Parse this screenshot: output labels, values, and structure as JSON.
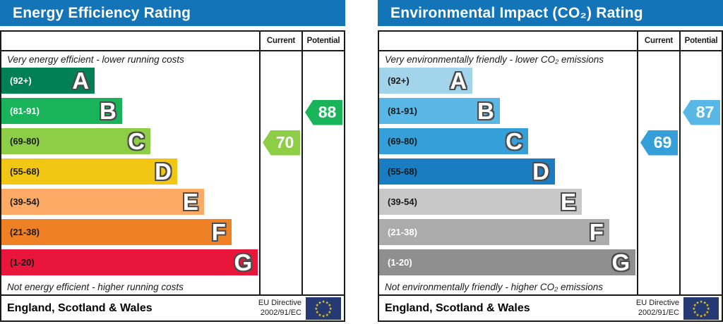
{
  "charts": [
    {
      "title": "Energy Efficiency Rating",
      "title_style": "background:#1374b8;color:#ffffff",
      "columns": {
        "current": "Current",
        "potential": "Potential"
      },
      "top_caption": "Very energy efficient - lower running costs",
      "bottom_caption": "Not energy efficient - higher running costs",
      "bands": [
        {
          "range": "(92+)",
          "letter": "A",
          "style": "width:36.2%;background:#008054;color:#ffffff"
        },
        {
          "range": "(81-91)",
          "letter": "B",
          "style": "width:46.8%;background:#19b459;color:#ffffff"
        },
        {
          "range": "(69-80)",
          "letter": "C",
          "style": "width:57.8%;background:#8dce46;color:#1a1a1a"
        },
        {
          "range": "(55-68)",
          "letter": "D",
          "style": "width:68.2%;background:#f2c713;color:#1a1a1a"
        },
        {
          "range": "(39-54)",
          "letter": "E",
          "style": "width:78.6%;background:#fcaa65;color:#1a1a1a"
        },
        {
          "range": "(21-38)",
          "letter": "F",
          "style": "width:89.3%;background:#ef8023;color:#1a1a1a"
        },
        {
          "range": "(1-20)",
          "letter": "G",
          "style": "width:99.5%;background:#e9153b;color:#1a1a1a"
        }
      ],
      "current": {
        "value": "70",
        "band": "C",
        "style": "background:#8dce46"
      },
      "potential": {
        "value": "88",
        "band": "B",
        "style": "background:#19b459"
      },
      "footer": {
        "region": "England, Scotland & Wales",
        "directive_line1": "EU Directive",
        "directive_line2": "2002/91/EC"
      },
      "eu_flag_style": "background:#253a72;color:#f7d117"
    },
    {
      "title": "Environmental Impact (CO₂) Rating",
      "title_style": "background:#1374b8;color:#ffffff",
      "columns": {
        "current": "Current",
        "potential": "Potential"
      },
      "top_caption": "Very environmentally friendly - lower CO₂ emissions",
      "bottom_caption": "Not environmentally friendly - higher CO₂ emissions",
      "bands": [
        {
          "range": "(92+)",
          "letter": "A",
          "style": "width:36.2%;background:#a2d5ec;color:#1a1a1a"
        },
        {
          "range": "(81-91)",
          "letter": "B",
          "style": "width:46.8%;background:#58b7e4;color:#1a1a1a"
        },
        {
          "range": "(69-80)",
          "letter": "C",
          "style": "width:57.8%;background:#349fd8;color:#1a1a1a"
        },
        {
          "range": "(55-68)",
          "letter": "D",
          "style": "width:68.2%;background:#1a7cc1;color:#1a1a1a"
        },
        {
          "range": "(39-54)",
          "letter": "E",
          "style": "width:78.6%;background:#c8c8c8;color:#1a1a1a"
        },
        {
          "range": "(21-38)",
          "letter": "F",
          "style": "width:89.3%;background:#ababab;color:#ffffff"
        },
        {
          "range": "(1-20)",
          "letter": "G",
          "style": "width:99.5%;background:#8f8f8f;color:#ffffff"
        }
      ],
      "current": {
        "value": "69",
        "band": "C",
        "style": "background:#349fd8"
      },
      "potential": {
        "value": "87",
        "band": "B",
        "style": "background:#58b7e4"
      },
      "footer": {
        "region": "England, Scotland & Wales",
        "directive_line1": "EU Directive",
        "directive_line2": "2002/91/EC"
      },
      "eu_flag_style": "background:#253a72;color:#f7d117"
    }
  ],
  "chart_data": [
    {
      "type": "bar",
      "title": "Energy Efficiency Rating",
      "categories": [
        "A (92+)",
        "B (81-91)",
        "C (69-80)",
        "D (55-68)",
        "E (39-54)",
        "F (21-38)",
        "G (1-20)"
      ],
      "values": [
        36.2,
        46.8,
        57.8,
        68.2,
        78.6,
        89.3,
        99.5
      ],
      "series": [
        {
          "name": "Current",
          "value": 70,
          "band": "C"
        },
        {
          "name": "Potential",
          "value": 88,
          "band": "B"
        }
      ],
      "xlabel": "",
      "ylabel": "",
      "legend_position": "right-columns",
      "annotations": [
        "Very energy efficient - lower running costs",
        "Not energy efficient - higher running costs"
      ]
    },
    {
      "type": "bar",
      "title": "Environmental Impact (CO₂) Rating",
      "categories": [
        "A (92+)",
        "B (81-91)",
        "C (69-80)",
        "D (55-68)",
        "E (39-54)",
        "F (21-38)",
        "G (1-20)"
      ],
      "values": [
        36.2,
        46.8,
        57.8,
        68.2,
        78.6,
        89.3,
        99.5
      ],
      "series": [
        {
          "name": "Current",
          "value": 69,
          "band": "C"
        },
        {
          "name": "Potential",
          "value": 87,
          "band": "B"
        }
      ],
      "xlabel": "",
      "ylabel": "",
      "legend_position": "right-columns",
      "annotations": [
        "Very environmentally friendly - lower CO₂ emissions",
        "Not environmentally friendly - higher CO₂ emissions"
      ]
    }
  ]
}
